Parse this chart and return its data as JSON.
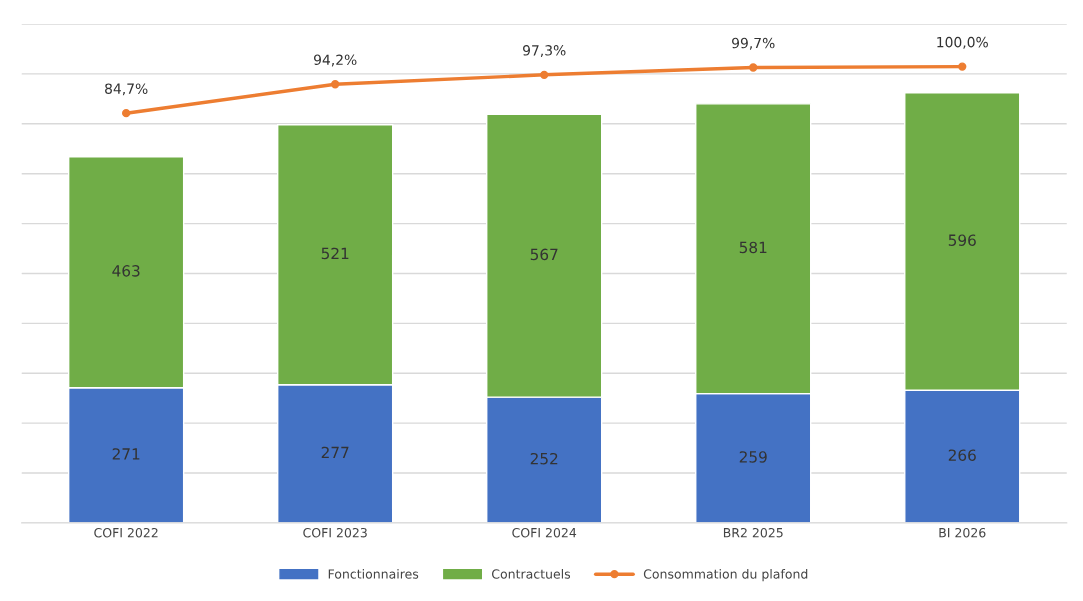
{
  "chart_data": {
    "type": "bar",
    "stacked": true,
    "categories": [
      "COFI 2022",
      "COFI 2023",
      "COFI 2024",
      "BR2 2025",
      "BI 2026"
    ],
    "series": [
      {
        "name": "Fonctionnaires",
        "color": "#4472c4",
        "values": [
          271,
          277,
          252,
          259,
          266
        ]
      },
      {
        "name": "Contractuels",
        "color": "#70ad47",
        "values": [
          463,
          521,
          567,
          581,
          596
        ]
      },
      {
        "name": "Consommation du plafond",
        "type": "line",
        "axis": "y2",
        "marker": "circle",
        "color": "#ed7d31",
        "values": [
          84.7,
          94.2,
          97.3,
          99.7,
          100.0
        ],
        "value_labels": [
          "84,7%",
          "94,2%",
          "97,3%",
          "99,7%",
          "100,0%"
        ]
      }
    ],
    "data_labels": true,
    "ylim": [
      0,
      1000
    ],
    "yticks": [
      {
        "value": 0,
        "label": null
      },
      {
        "value": 100,
        "label": null
      },
      {
        "value": 200,
        "label": null
      },
      {
        "value": 300,
        "label": null
      },
      {
        "value": 400,
        "label": null
      },
      {
        "value": 500,
        "label": null
      },
      {
        "value": 600,
        "label": null
      },
      {
        "value": 700,
        "label": null
      },
      {
        "value": 800,
        "label": null
      },
      {
        "value": 900,
        "label": null
      },
      {
        "value": 1000,
        "label": null
      }
    ],
    "y2lim": [
      -50,
      114
    ],
    "tick_labels": "x",
    "grid": "y",
    "legend": "bottom"
  }
}
